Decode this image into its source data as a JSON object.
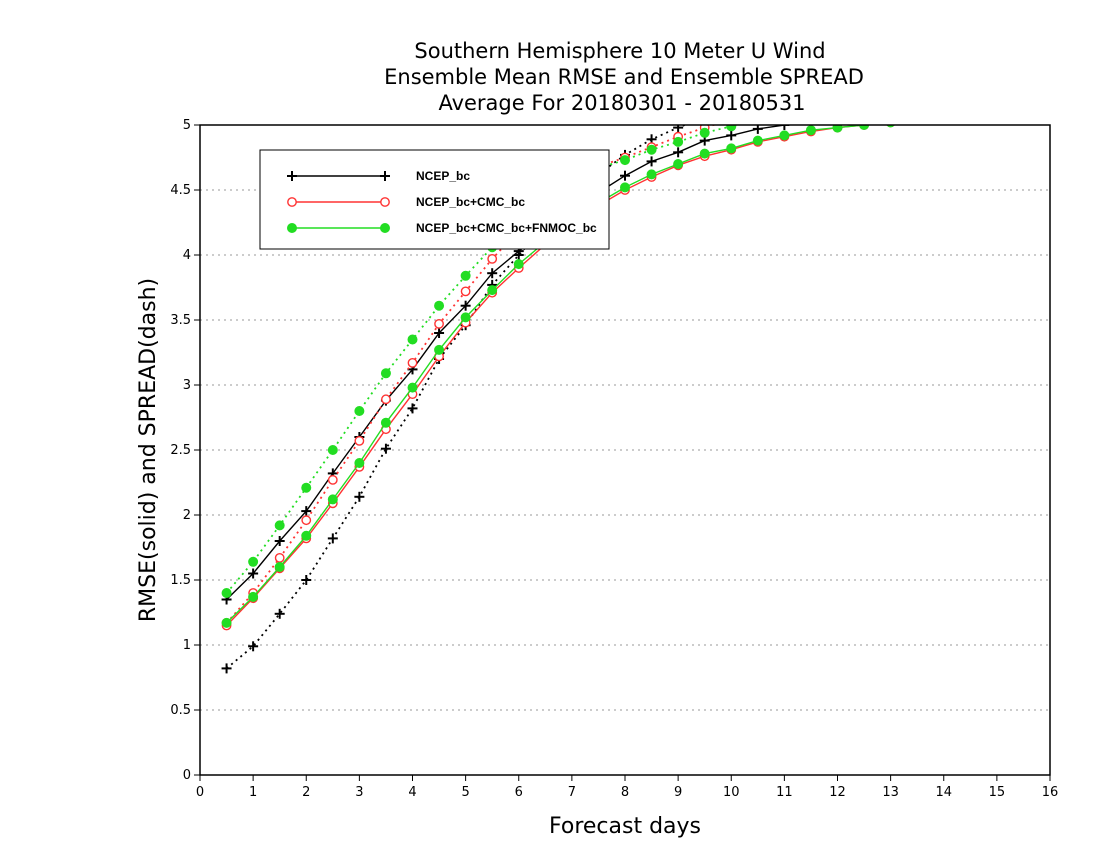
{
  "chart_data": {
    "type": "line",
    "title_lines": [
      "Southern Hemisphere 10 Meter U Wind",
      "Ensemble Mean RMSE and Ensemble SPREAD",
      "Average For 20180301 - 20180531"
    ],
    "xlabel": "Forecast days",
    "ylabel": "RMSE(solid) and SPREAD(dash)",
    "xlim": [
      0,
      16
    ],
    "ylim": [
      0,
      5
    ],
    "x_ticks": [
      "0",
      "1",
      "2",
      "3",
      "4",
      "5",
      "6",
      "7",
      "8",
      "9",
      "10",
      "11",
      "12",
      "13",
      "14",
      "15",
      "16"
    ],
    "y_ticks": [
      "0",
      "0.5",
      "1",
      "1.5",
      "2",
      "2.5",
      "3",
      "3.5",
      "4",
      "4.5",
      "5"
    ],
    "grid": "horizontal dotted",
    "legend_position": "top-left",
    "x": [
      0.5,
      1,
      1.5,
      2,
      2.5,
      3,
      3.5,
      4,
      4.5,
      5,
      5.5,
      6,
      6.5,
      7,
      7.5,
      8,
      8.5,
      9,
      9.5,
      10,
      10.5,
      11,
      11.5,
      12,
      12.5,
      13
    ],
    "series": [
      {
        "name": "NCEP_bc",
        "color": "#000000",
        "marker": "plus",
        "rmse": [
          1.35,
          1.55,
          1.8,
          2.03,
          2.32,
          2.6,
          2.88,
          3.12,
          3.4,
          3.61,
          3.86,
          4.03,
          4.18,
          4.33,
          4.48,
          4.61,
          4.72,
          4.79,
          4.88,
          4.92,
          4.97,
          5.0,
          5.02,
          5.03,
          5.03,
          5.04
        ],
        "spread": [
          0.82,
          0.99,
          1.24,
          1.5,
          1.82,
          2.14,
          2.51,
          2.82,
          3.2,
          3.46,
          3.77,
          4.0,
          4.23,
          4.44,
          4.62,
          4.77,
          4.89,
          4.98,
          5.06,
          5.13,
          5.19,
          5.24,
          5.28,
          5.32,
          5.35,
          5.38
        ]
      },
      {
        "name": "NCEP_bc+CMC_bc",
        "color": "#ff3333",
        "marker": "circle-open",
        "rmse": [
          1.15,
          1.36,
          1.59,
          1.82,
          2.09,
          2.37,
          2.66,
          2.93,
          3.22,
          3.48,
          3.71,
          3.9,
          4.08,
          4.24,
          4.38,
          4.5,
          4.6,
          4.69,
          4.76,
          4.81,
          4.87,
          4.91,
          4.95,
          4.98,
          5.0,
          5.02
        ],
        "spread": [
          1.17,
          1.4,
          1.67,
          1.96,
          2.27,
          2.57,
          2.89,
          3.17,
          3.47,
          3.72,
          3.97,
          4.19,
          4.39,
          4.56,
          4.68,
          4.75,
          4.83,
          4.91,
          4.98,
          5.04,
          5.09,
          5.14,
          5.18,
          5.22,
          5.25,
          5.28
        ]
      },
      {
        "name": "NCEP_bc+CMC_bc+FNMOC_bc",
        "color": "#22dd22",
        "marker": "circle-filled",
        "rmse": [
          1.17,
          1.37,
          1.6,
          1.84,
          2.12,
          2.4,
          2.71,
          2.98,
          3.27,
          3.52,
          3.73,
          3.93,
          4.1,
          4.26,
          4.4,
          4.52,
          4.62,
          4.7,
          4.78,
          4.82,
          4.88,
          4.92,
          4.96,
          4.98,
          5.0,
          5.02
        ],
        "spread": [
          1.4,
          1.64,
          1.92,
          2.21,
          2.5,
          2.8,
          3.09,
          3.35,
          3.61,
          3.84,
          4.06,
          4.25,
          4.42,
          4.56,
          4.67,
          4.73,
          4.81,
          4.87,
          4.94,
          4.99,
          5.05,
          5.1,
          5.15,
          5.19,
          5.23,
          5.26
        ]
      }
    ]
  }
}
